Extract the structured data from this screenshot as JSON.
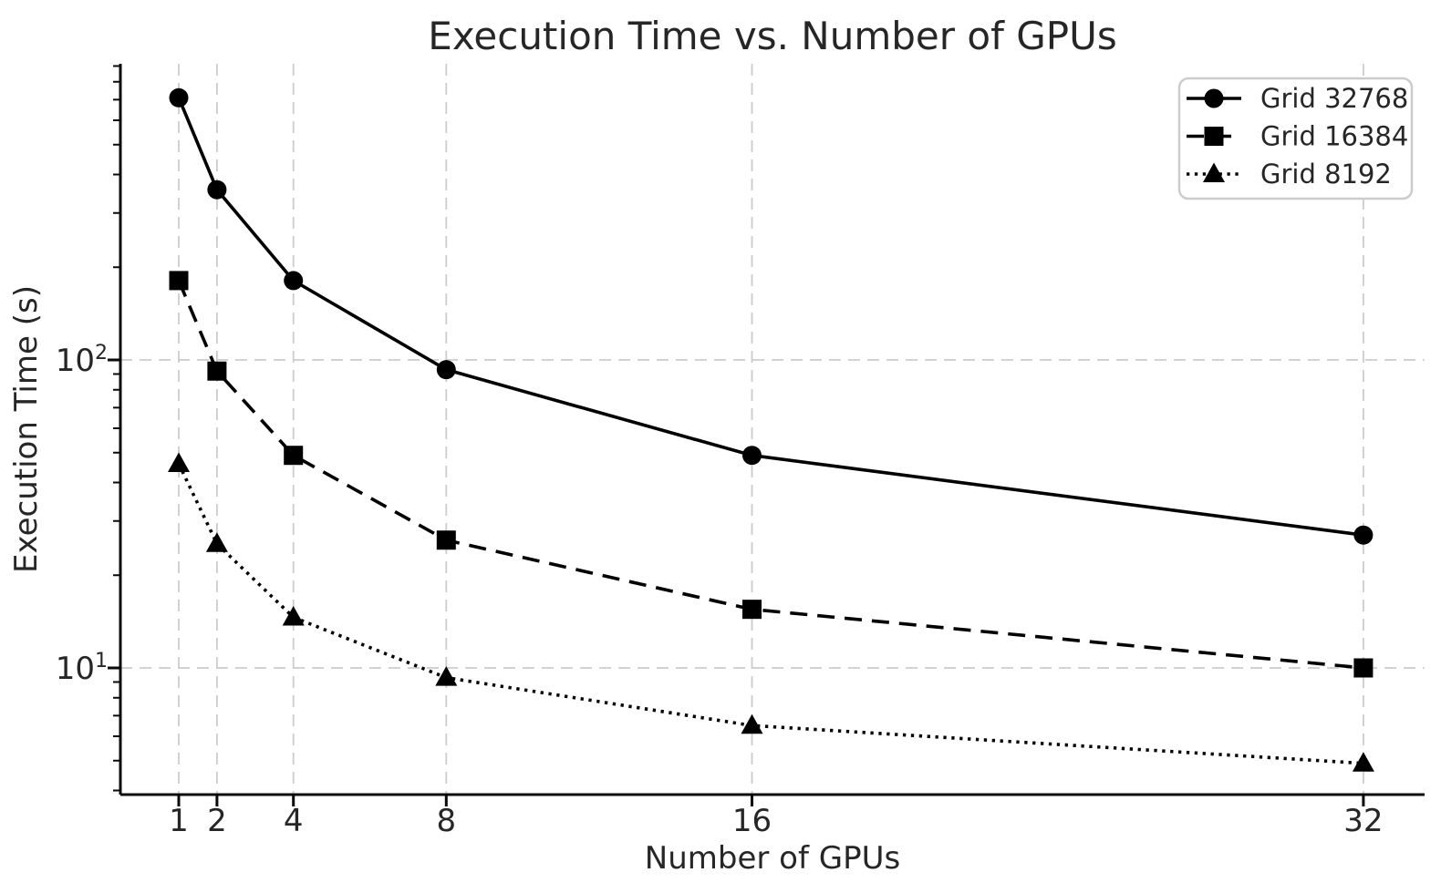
{
  "figure": {
    "background": "#ffffff"
  },
  "chart_data": {
    "type": "line",
    "title": "Execution Time vs. Number of GPUs",
    "xlabel": "Number of GPUs",
    "ylabel": "Execution Time (s)",
    "x": [
      1,
      2,
      4,
      8,
      16,
      32
    ],
    "x_tick_labels": [
      "1",
      "2",
      "4",
      "8",
      "16",
      "32"
    ],
    "y_major_ticks": [
      10,
      100
    ],
    "y_major_tick_labels": [
      "10¹",
      "10²"
    ],
    "xscale": "linear",
    "yscale": "log",
    "xlim": [
      -0.53,
      33.6
    ],
    "ylim": [
      3.85,
      915
    ],
    "grid": true,
    "legend_position": "upper right",
    "series": [
      {
        "name": "Grid 32768",
        "marker": "circle",
        "linestyle": "solid",
        "color": "#000000",
        "values": [
          710,
          357,
          181,
          93,
          49,
          27
        ]
      },
      {
        "name": "Grid 16384",
        "marker": "square",
        "linestyle": "dashed",
        "color": "#000000",
        "values": [
          181,
          92,
          49,
          26,
          15.5,
          10
        ]
      },
      {
        "name": "Grid 8192",
        "marker": "triangle",
        "linestyle": "dotted",
        "color": "#000000",
        "values": [
          46,
          25.3,
          14.6,
          9.3,
          6.5,
          4.9
        ]
      }
    ],
    "colors": {
      "text": "#262626",
      "line": "#000000",
      "grid": "#cccccc",
      "legend_border": "#cccccc",
      "background": "#ffffff"
    }
  }
}
